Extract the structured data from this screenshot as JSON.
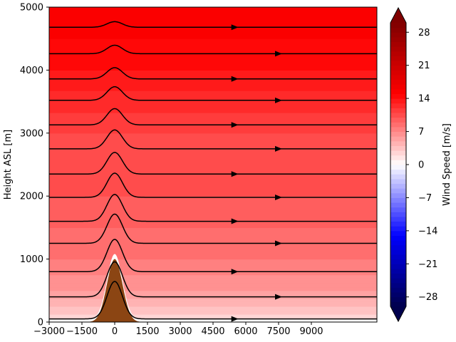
{
  "chart_data": {
    "type": "heatmap",
    "title": "",
    "xlabel": "",
    "ylabel": "Height ASL [m]",
    "x_tick_labels": [
      "−3000",
      "−1500",
      "0",
      "1500",
      "3000",
      "4500",
      "6000",
      "7500",
      "9000"
    ],
    "x_ticks": [
      -3000,
      -1500,
      0,
      1500,
      3000,
      4500,
      6000,
      7500,
      9000
    ],
    "xlim": [
      -3000,
      12000
    ],
    "ylim": [
      0,
      5000
    ],
    "y_ticks": [
      0,
      1000,
      2000,
      3000,
      4000,
      5000
    ],
    "y_tick_labels": [
      "0",
      "1000",
      "2000",
      "3000",
      "4000",
      "5000"
    ],
    "field": "horizontal wind speed",
    "wind_speed_by_height": {
      "heights": [
        0,
        500,
        1000,
        1500,
        2000,
        2500,
        3000,
        3500,
        4000,
        4500,
        5000
      ],
      "speeds": [
        2,
        6,
        8,
        9,
        10,
        10.5,
        11,
        12.5,
        14,
        15,
        16
      ]
    },
    "terrain": {
      "shape": "gaussian ridge",
      "peak_height": 1000,
      "center_x": 0,
      "half_width": 500,
      "color": "#8b4513"
    },
    "streamline_heights": [
      50,
      400,
      800,
      1250,
      1600,
      1980,
      2350,
      2750,
      3130,
      3520,
      3860,
      4260,
      4680
    ],
    "colorbar": {
      "label": "Wind Speed [m/s]",
      "min": -30,
      "max": 30,
      "ticks": [
        28,
        21,
        14,
        7,
        0,
        -7,
        -14,
        -21,
        -28
      ],
      "tick_labels": [
        "28",
        "21",
        "14",
        "7",
        "0",
        "−7",
        "−14",
        "−21",
        "−28"
      ],
      "colormap": "seismic",
      "extend": "both"
    }
  }
}
